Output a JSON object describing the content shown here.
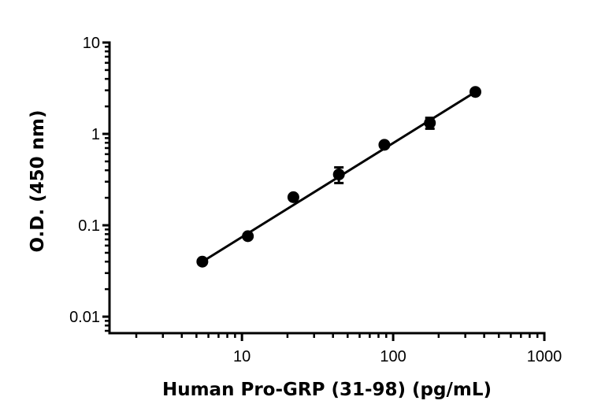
{
  "chart_data": {
    "type": "scatter",
    "title": "",
    "xlabel": "Human Pro-GRP (31-98) (pg/mL)",
    "ylabel": "O.D. (450 nm)",
    "xscale": "log",
    "yscale": "log",
    "xlim": [
      1.33,
      1000
    ],
    "ylim": [
      0.0066,
      10
    ],
    "x_ticks": [
      10,
      100,
      1000
    ],
    "x_tick_labels": [
      "10",
      "100",
      "1000"
    ],
    "y_ticks": [
      0.01,
      0.1,
      1,
      10
    ],
    "y_tick_labels": [
      "0.01",
      "0.1",
      "1",
      "10"
    ],
    "grid": false,
    "legend": null,
    "series": [
      {
        "name": "Human Pro-GRP (31-98)",
        "marker": "circle",
        "color": "#000000",
        "x": [
          5.47,
          10.94,
          21.88,
          43.75,
          87.5,
          175,
          350
        ],
        "y": [
          0.04,
          0.076,
          0.203,
          0.36,
          0.76,
          1.32,
          2.88
        ],
        "error": [
          0,
          0,
          0,
          0.07,
          0,
          0.18,
          0
        ]
      }
    ],
    "fit_line": {
      "type": "linear-log-log",
      "x_range": [
        5.47,
        350
      ],
      "y_range": [
        0.04,
        2.88
      ]
    }
  }
}
